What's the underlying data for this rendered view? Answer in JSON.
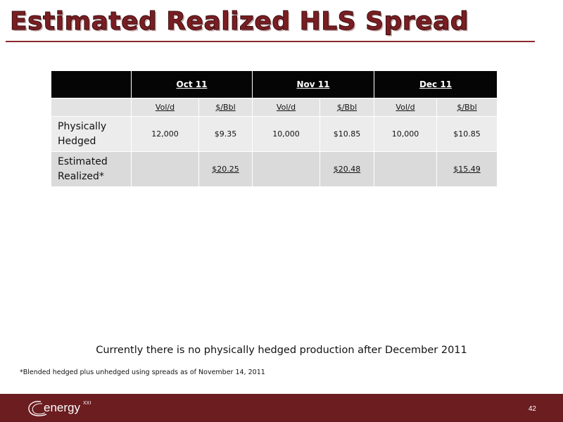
{
  "slide": {
    "title": "Estimated Realized HLS Spread",
    "page_number": "42"
  },
  "table": {
    "months": [
      "Oct 11",
      "Nov 11",
      "Dec 11"
    ],
    "subheaders": [
      "Vol/d",
      "$/Bbl",
      "Vol/d",
      "$/Bbl",
      "Vol/d",
      "$/Bbl"
    ],
    "rows": [
      {
        "label_line1": "Physically",
        "label_line2": "Hedged",
        "cells": [
          "12,000",
          "$9.35",
          "10,000",
          "$10.85",
          "10,000",
          "$10.85"
        ]
      },
      {
        "label_line1": "Estimated",
        "label_line2": "Realized*",
        "cells": [
          "",
          "$20.25",
          "",
          "$20.48",
          "",
          "$15.49"
        ]
      }
    ]
  },
  "notes": {
    "main": "Currently there is no physically hedged production after December 2011",
    "footnote": "*Blended hedged plus unhedged using spreads as of November 14, 2011"
  },
  "footer": {
    "logo_text": "energy",
    "logo_superscript": "XXI"
  },
  "colors": {
    "brand_maroon": "#6b1d20",
    "title_red": "#7a1e22",
    "table_header_black": "#050505"
  }
}
